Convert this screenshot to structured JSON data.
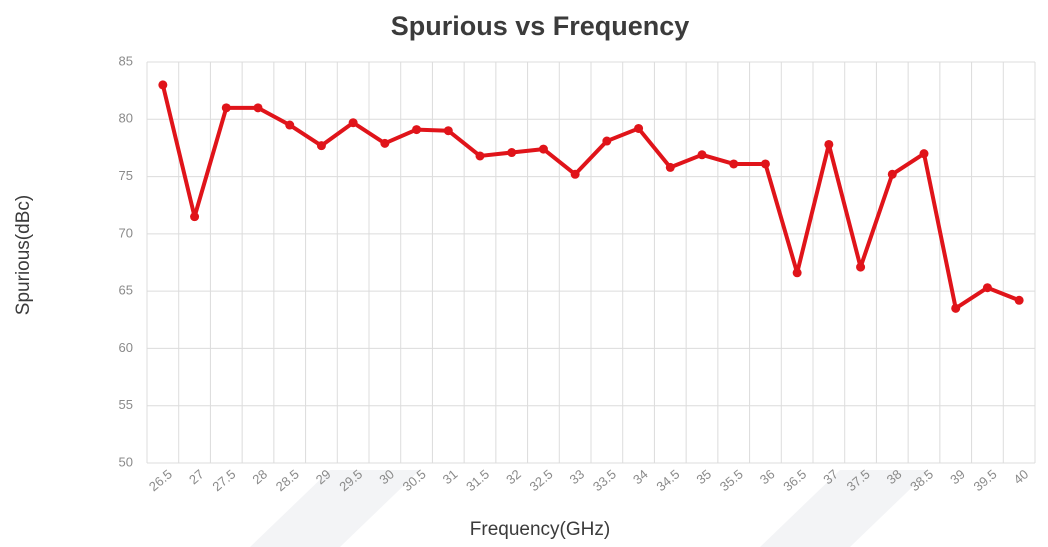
{
  "chart_data": {
    "type": "line",
    "title": "Spurious vs Frequency",
    "x_label": "Frequency(GHz)",
    "y_label": "Spurious(dBc)",
    "categories": [
      "26.5",
      "27",
      "27.5",
      "28",
      "28.5",
      "29",
      "29.5",
      "30",
      "30.5",
      "31",
      "31.5",
      "32",
      "32.5",
      "33",
      "33.5",
      "34",
      "34.5",
      "35",
      "35.5",
      "36",
      "36.5",
      "37",
      "37.5",
      "38",
      "38.5",
      "39",
      "39.5",
      "40"
    ],
    "series": [
      {
        "name": "Spurious",
        "color": "#e0141a",
        "values": [
          83,
          71.5,
          81,
          81,
          79.5,
          77.7,
          79.7,
          77.9,
          79.1,
          79,
          76.8,
          77.1,
          77.4,
          75.2,
          78.1,
          79.2,
          75.8,
          76.9,
          76.1,
          76.1,
          66.6,
          77.8,
          67.1,
          75.2,
          77,
          63.5,
          65.3,
          64.2
        ]
      }
    ],
    "ylim": [
      50,
      85
    ],
    "yticks": [
      50,
      55,
      60,
      65,
      70,
      75,
      80,
      85
    ],
    "grid": true
  }
}
